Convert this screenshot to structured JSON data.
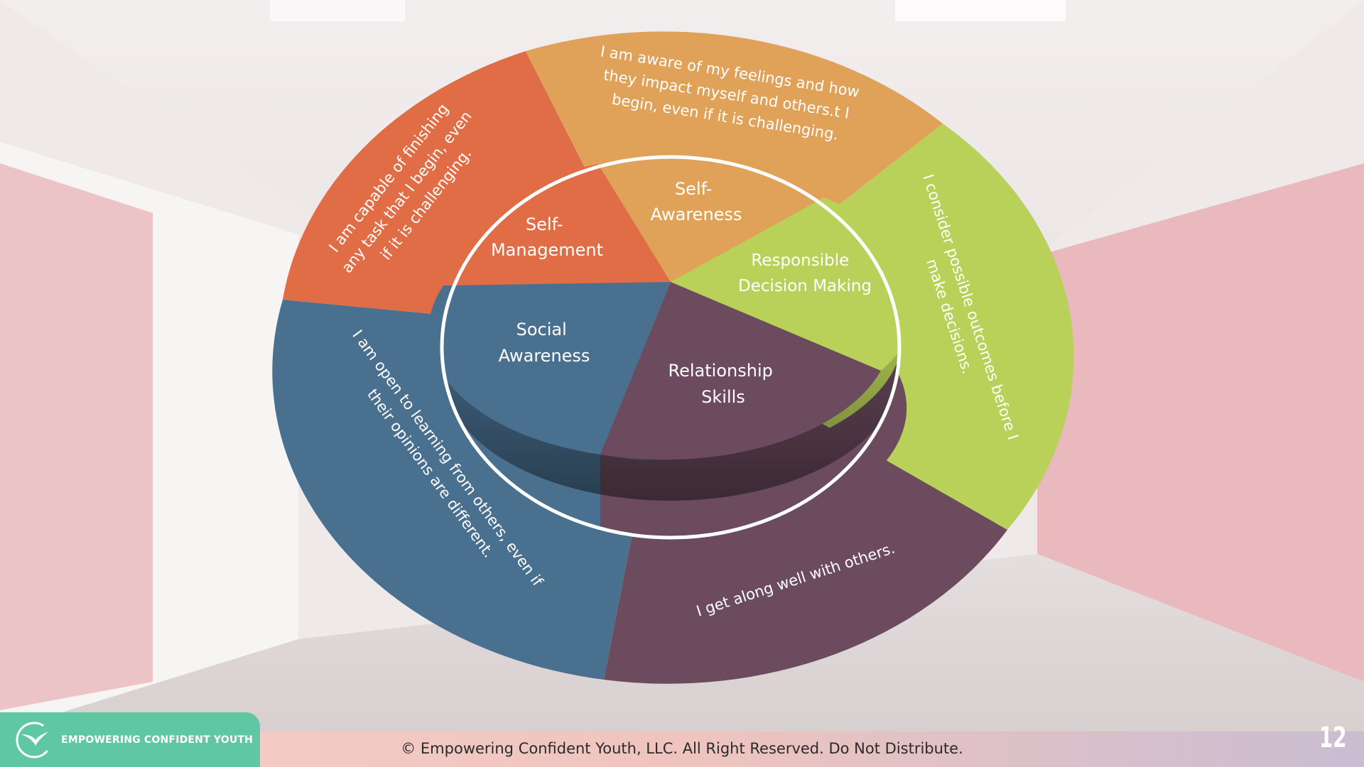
{
  "diagram": {
    "inner_labels": {
      "self_management": [
        "Self-",
        "Management"
      ],
      "self_awareness": [
        "Self-",
        "Awareness"
      ],
      "responsible_decision": [
        "Responsible",
        "Decision Making"
      ],
      "social_awareness": [
        "Social",
        "Awareness"
      ],
      "relationship_skills": [
        "Relationship",
        "Skills"
      ]
    },
    "outer_statements": {
      "self_management": [
        "I am capable of finishing",
        "any task that I begin, even",
        "if it is challenging."
      ],
      "self_awareness": [
        "I am aware of my feelings and how",
        "they impact myself and others.t I",
        "begin, even if it is challenging."
      ],
      "responsible_decision": [
        "I consider possible outcomes before I",
        "make decisions."
      ],
      "social_awareness": [
        "I am open to learning from others, even if",
        "their opinions are different."
      ],
      "relationship_skills": [
        "I get along well with others."
      ]
    },
    "colors": {
      "self_management": "#e06d45",
      "self_awareness": "#e0a158",
      "responsible_decision": "#b9d158",
      "social_awareness": "#4a7090",
      "relationship_skills": "#6b4b5d"
    }
  },
  "footer": {
    "logo_text": "EMPOWERING CONFIDENT YOUTH",
    "copyright": "© Empowering Confident Youth, LLC. All Right Reserved. Do Not Distribute.",
    "page_number": "12"
  }
}
